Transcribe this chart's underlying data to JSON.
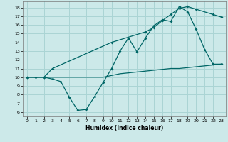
{
  "xlabel": "Humidex (Indice chaleur)",
  "background_color": "#cce9e9",
  "grid_color": "#aad4d4",
  "line_color": "#006666",
  "xlim": [
    -0.5,
    23.5
  ],
  "ylim": [
    5.5,
    18.7
  ],
  "x_ticks": [
    0,
    1,
    2,
    3,
    4,
    5,
    6,
    7,
    8,
    9,
    10,
    11,
    12,
    13,
    14,
    15,
    16,
    17,
    18,
    19,
    20,
    21,
    22,
    23
  ],
  "y_ticks": [
    6,
    7,
    8,
    9,
    10,
    11,
    12,
    13,
    14,
    15,
    16,
    17,
    18
  ],
  "line1_x": [
    0,
    1,
    2,
    3,
    4,
    5,
    6,
    7,
    8,
    9,
    10,
    11,
    12,
    13,
    14,
    15,
    16,
    17,
    18,
    19,
    20,
    21,
    22,
    23
  ],
  "line1_y": [
    10,
    10,
    10,
    9.8,
    9.5,
    7.7,
    6.2,
    6.3,
    7.8,
    9.4,
    11.0,
    13.0,
    14.5,
    12.9,
    14.5,
    15.9,
    16.6,
    16.4,
    18.1,
    17.5,
    15.5,
    13.2,
    11.5,
    11.5
  ],
  "line2_x": [
    0,
    2,
    3,
    10,
    14,
    15,
    16,
    17,
    18,
    19,
    20,
    22,
    23
  ],
  "line2_y": [
    10,
    10,
    11.0,
    14.0,
    15.2,
    15.7,
    16.5,
    17.2,
    17.9,
    18.1,
    17.8,
    17.2,
    16.9
  ],
  "line3_x": [
    0,
    1,
    2,
    3,
    4,
    5,
    6,
    7,
    8,
    9,
    10,
    11,
    12,
    13,
    14,
    15,
    16,
    17,
    18,
    19,
    20,
    21,
    22,
    23
  ],
  "line3_y": [
    10,
    10,
    10,
    10,
    10,
    10,
    10,
    10,
    10,
    10,
    10.2,
    10.4,
    10.5,
    10.6,
    10.7,
    10.8,
    10.9,
    11.0,
    11.0,
    11.1,
    11.2,
    11.3,
    11.4,
    11.5
  ]
}
